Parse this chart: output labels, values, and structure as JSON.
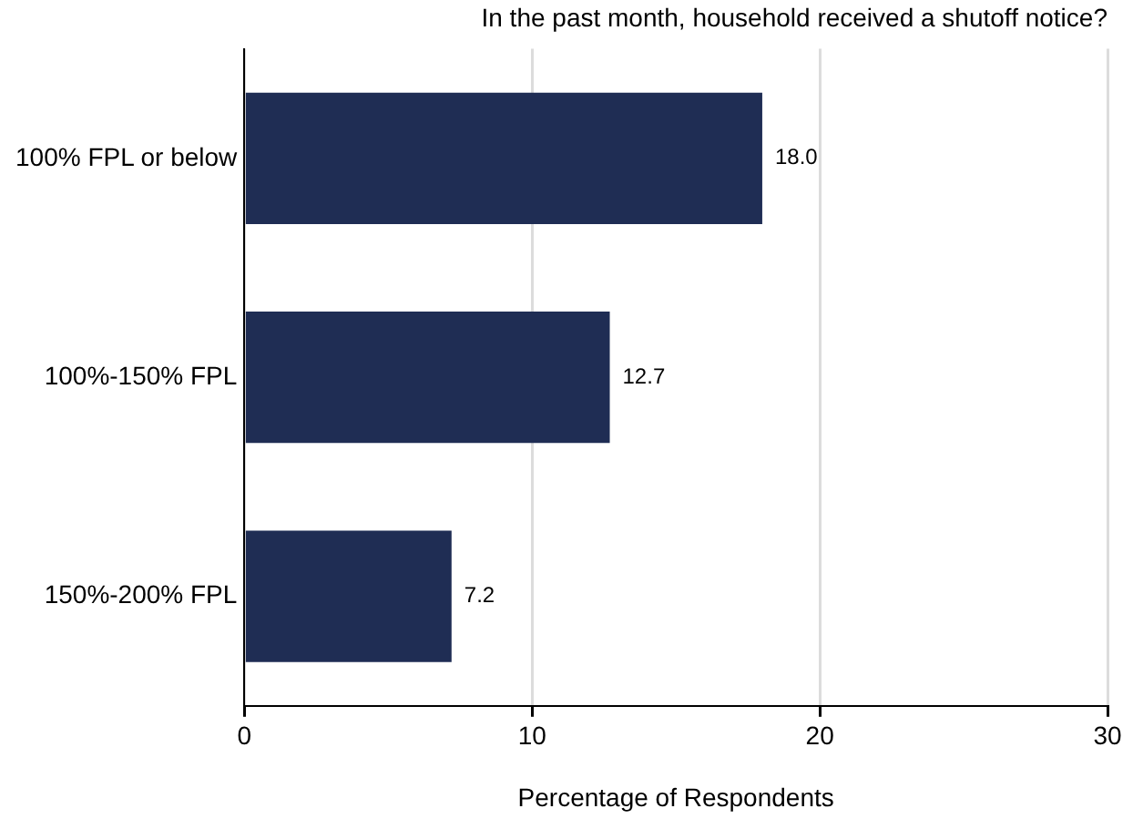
{
  "chart_data": {
    "type": "bar",
    "orientation": "horizontal",
    "title": "In the past month, household received a shutoff notice?",
    "categories": [
      "100% FPL or below",
      "100%-150% FPL",
      "150%-200% FPL"
    ],
    "values": [
      18.0,
      12.7,
      7.2
    ],
    "color": "#1f2d54",
    "xlabel": "Percentage of Respondents",
    "xlim": [
      0,
      30
    ],
    "xticks": [
      0,
      10,
      20,
      30
    ],
    "grid": "x",
    "value_labels": [
      "18.0",
      "12.7",
      "7.2"
    ],
    "legend": false
  }
}
